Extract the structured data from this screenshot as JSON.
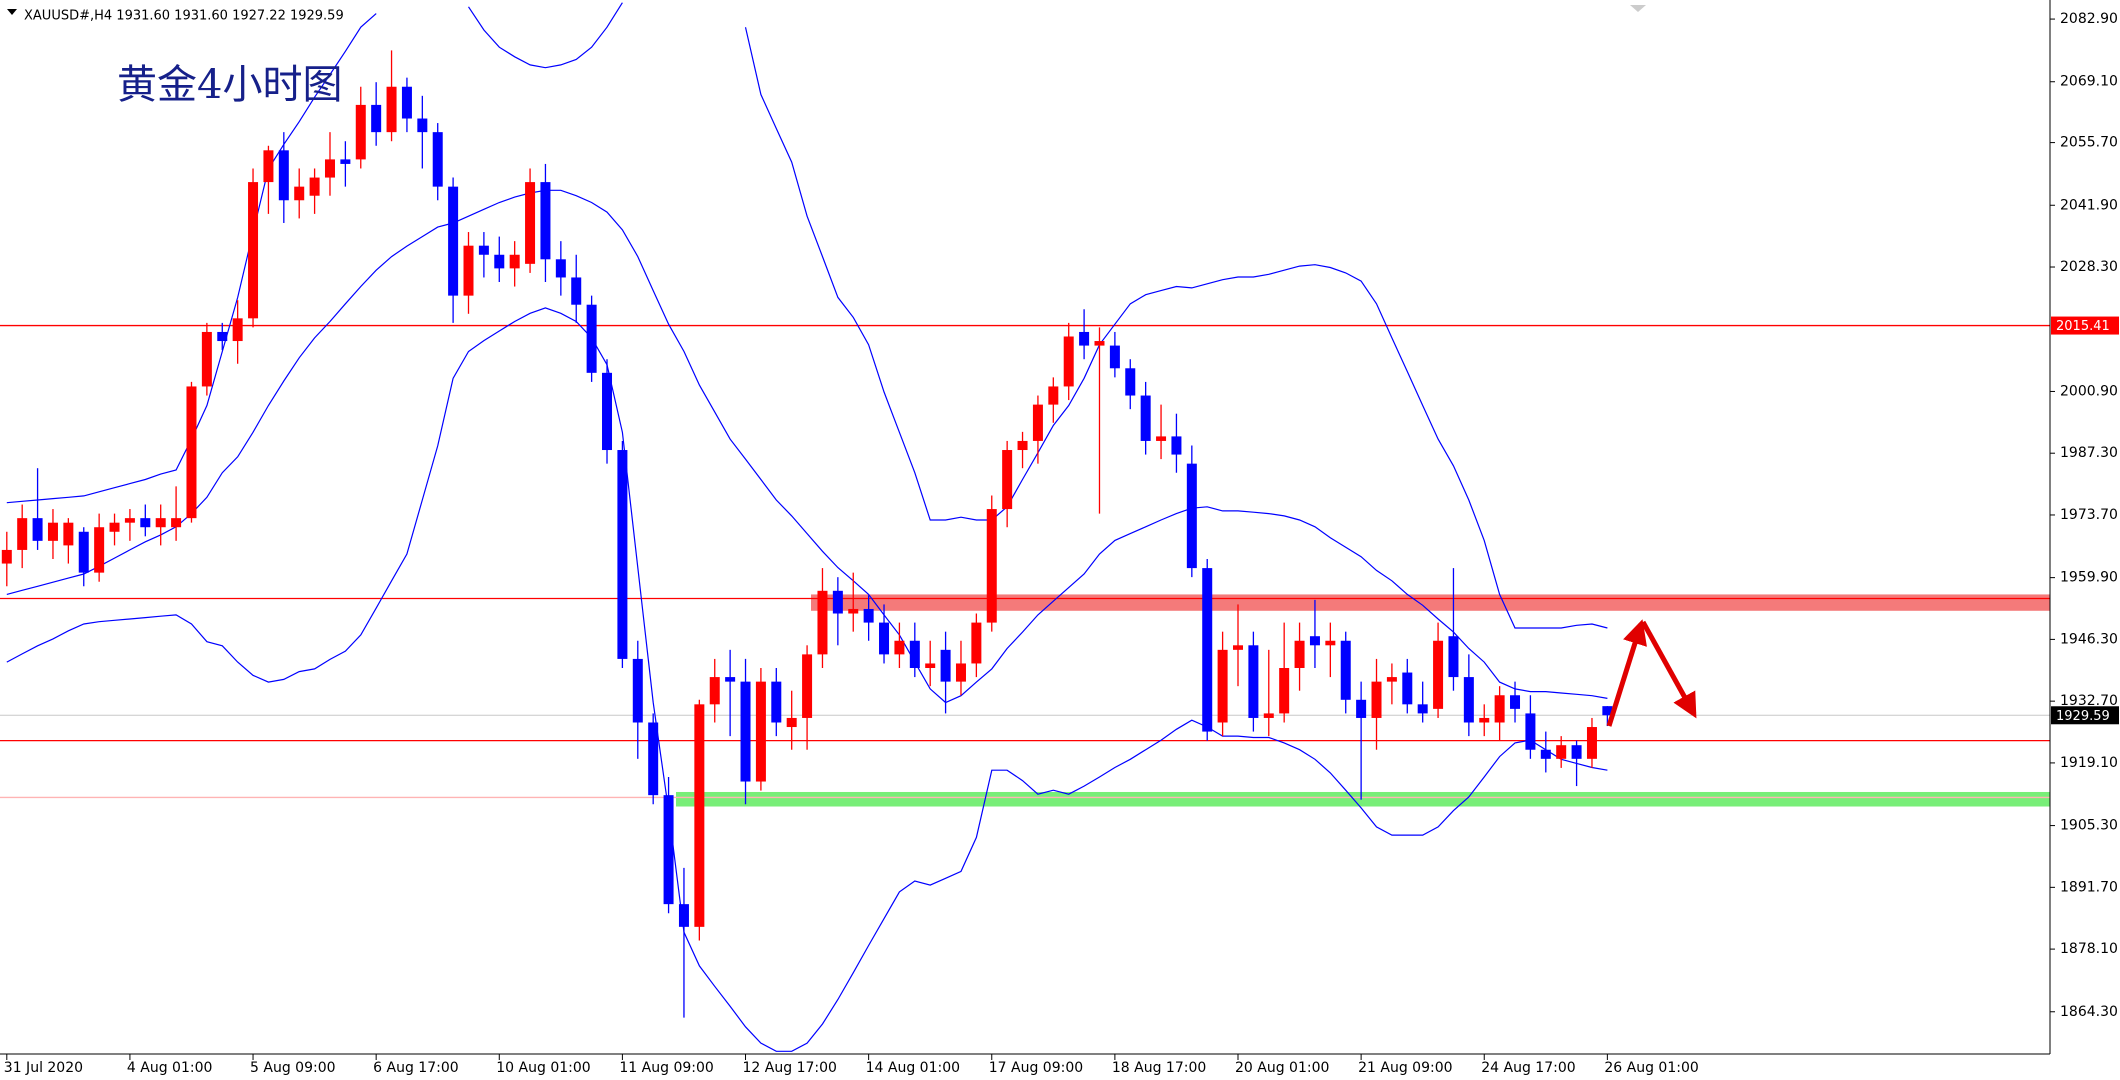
{
  "chart_data": {
    "type": "candlestick",
    "title": "XAUUSD#,H4  1931.60 1931.60 1927.22 1929.59",
    "annotation": "黄金4小时图",
    "up_color": "#ff0000",
    "down_color": "#0000ff",
    "categories": [
      "31 Jul 2020",
      null,
      null,
      null,
      null,
      null,
      null,
      null,
      "4 Aug 01:00",
      null,
      null,
      null,
      null,
      null,
      null,
      null,
      "5 Aug 09:00",
      null,
      null,
      null,
      null,
      null,
      null,
      null,
      "6 Aug 17:00",
      null,
      null,
      null,
      null,
      null,
      null,
      null,
      "10 Aug 01:00",
      null,
      null,
      null,
      null,
      null,
      null,
      null,
      "11 Aug 09:00",
      null,
      null,
      null,
      null,
      null,
      null,
      null,
      "12 Aug 17:00",
      null,
      null,
      null,
      null,
      null,
      null,
      null,
      "14 Aug 01:00",
      null,
      null,
      null,
      null,
      null,
      null,
      null,
      "17 Aug 09:00",
      null,
      null,
      null,
      null,
      null,
      null,
      null,
      "18 Aug 17:00",
      null,
      null,
      null,
      null,
      null,
      null,
      null,
      "20 Aug 01:00",
      null,
      null,
      null,
      null,
      null,
      null,
      null,
      "21 Aug 09:00",
      null,
      null,
      null,
      null,
      null,
      null,
      null,
      "24 Aug 17:00",
      null,
      null,
      null,
      null,
      null,
      null,
      null,
      "26 Aug 01:00"
    ],
    "open": [
      1963,
      1966,
      1973,
      1968,
      1967,
      1970,
      1961,
      1970,
      1972,
      1973,
      1971,
      1971,
      1973,
      2002,
      2014,
      2012,
      2017,
      2047,
      2054,
      2043,
      2044,
      2048,
      2052,
      2052,
      2064,
      2058,
      2068,
      2061,
      2058,
      2046,
      2022,
      2033,
      2031,
      2028,
      2029,
      2047,
      2030,
      2026,
      2020,
      2005,
      1988,
      1942,
      1928,
      1912,
      1888,
      1883,
      1932,
      1938,
      1937,
      1915,
      1937,
      1927,
      1929,
      1943,
      1957,
      1952,
      1953,
      1950,
      1943,
      1946,
      1940,
      1944,
      1937,
      1941,
      1950,
      1975,
      1988,
      1990,
      1998,
      2002,
      2014,
      2011,
      2011,
      2006,
      2000,
      1990,
      1991,
      1985,
      1962,
      1928,
      1944,
      1945,
      1929,
      1930,
      1940,
      1947,
      1945,
      1946,
      1933,
      1929,
      1937,
      1939,
      1932,
      1931,
      1947,
      1938,
      1928,
      1928,
      1934,
      1930,
      1922,
      1920,
      1923,
      1920,
      1931.6
    ],
    "high": [
      1970,
      1976,
      1984,
      1975,
      1973,
      1971,
      1974,
      1974,
      1975,
      1976,
      1976,
      1980,
      2003,
      2016,
      2016,
      2021,
      2050,
      2055,
      2058,
      2050,
      2050,
      2058,
      2056,
      2068,
      2069,
      2076,
      2070,
      2066,
      2060,
      2048,
      2036,
      2036,
      2035,
      2034,
      2050,
      2051,
      2034,
      2031,
      2022,
      2008,
      1990,
      1946,
      1930,
      1916,
      1896,
      1933,
      1942,
      1944,
      1942,
      1940,
      1940,
      1935,
      1945,
      1962,
      1960,
      1961,
      1956,
      1954,
      1950,
      1950,
      1946,
      1948,
      1946,
      1952,
      1978,
      1990,
      1992,
      2000,
      2004,
      2016,
      2019,
      2015,
      2014,
      2008,
      2003,
      1998,
      1996,
      1989,
      1964,
      1948,
      1954,
      1948,
      1944,
      1950,
      1950,
      1955,
      1950,
      1948,
      1937,
      1942,
      1941,
      1942,
      1937,
      1950,
      1962,
      1943,
      1932,
      1936,
      1937,
      1934,
      1926,
      1925,
      1924,
      1929,
      1931.6
    ],
    "low": [
      1958,
      1962,
      1966,
      1964,
      1963,
      1958,
      1959,
      1967,
      1968,
      1969,
      1967,
      1968,
      1972,
      2000,
      2010,
      2007,
      2015,
      2040,
      2038,
      2039,
      2040,
      2044,
      2046,
      2050,
      2055,
      2056,
      2058,
      2050,
      2043,
      2016,
      2018,
      2026,
      2025,
      2024,
      2027,
      2025,
      2022,
      2016,
      2003,
      1985,
      1940,
      1920,
      1910,
      1886,
      1863,
      1880,
      1928,
      1925,
      1910,
      1913,
      1925,
      1922,
      1922,
      1940,
      1945,
      1948,
      1946,
      1941,
      1940,
      1938,
      1936,
      1930,
      1934,
      1938,
      1948,
      1971,
      1984,
      1985,
      1994,
      1999,
      2008,
      1974,
      2004,
      1997,
      1987,
      1986,
      1983,
      1960,
      1924,
      1925,
      1936,
      1926,
      1925,
      1928,
      1935,
      1940,
      1938,
      1930,
      1911,
      1922,
      1932,
      1930,
      1928,
      1929,
      1935,
      1925,
      1925,
      1924,
      1928,
      1920,
      1917,
      1918,
      1914,
      1918,
      1927.22
    ],
    "close": [
      1966,
      1973,
      1968,
      1972,
      1972,
      1961,
      1971,
      1972,
      1973,
      1971,
      1973,
      1973,
      2002,
      2014,
      2012,
      2017,
      2047,
      2054,
      2043,
      2046,
      2048,
      2052,
      2051,
      2064,
      2058,
      2068,
      2061,
      2058,
      2046,
      2022,
      2033,
      2031,
      2028,
      2031,
      2047,
      2030,
      2026,
      2020,
      2005,
      1988,
      1942,
      1928,
      1912,
      1888,
      1883,
      1932,
      1938,
      1937,
      1915,
      1937,
      1928,
      1929,
      1943,
      1957,
      1952,
      1953,
      1950,
      1943,
      1946,
      1940,
      1941,
      1937,
      1941,
      1950,
      1975,
      1988,
      1990,
      1998,
      2002,
      2013,
      2011,
      2012,
      2006,
      2000,
      1990,
      1991,
      1987,
      1962,
      1926,
      1944,
      1945,
      1929,
      1930,
      1940,
      1946,
      1945,
      1946,
      1933,
      1929,
      1937,
      1938,
      1932,
      1930,
      1946,
      1938,
      1928,
      1929,
      1934,
      1931,
      1922,
      1920,
      1923,
      1920,
      1927,
      1929.59
    ],
    "overlays": [
      {
        "color": "#0000ff",
        "values": [
          1976.4,
          1976.7,
          1977.0,
          1977.3,
          1977.6,
          1977.9,
          1978.8,
          1979.7,
          1980.6,
          1981.5,
          1982.7,
          1983.6,
          1990.4,
          1997.8,
          2009.7,
          2021.6,
          2035.9,
          2049.9,
          2055.3,
          2060.3,
          2065.7,
          2070.7,
          2075.8,
          2081.1,
          2084.1,
          null,
          null,
          null,
          null,
          null,
          2085.6,
          2080.5,
          2076.7,
          2074.6,
          2072.8,
          2072.2,
          2072.8,
          2074.0,
          2076.7,
          2081.1,
          2086.5,
          null,
          null,
          null,
          null,
          null,
          null,
          null,
          2081.1,
          2066.3,
          2058.8,
          2051.4,
          2039.5,
          2030.6,
          2021.6,
          2017.2,
          2011.2,
          2000.8,
          1991.9,
          1983.0,
          1972.6,
          1972.6,
          1973.2,
          1972.6,
          1972.6,
          1975.5,
          1981.5,
          1987.4,
          1993.4,
          1997.8,
          2003.8,
          2011.2,
          2015.7,
          2020.2,
          2022.2,
          2023.1,
          2024.0,
          2023.7,
          2024.6,
          2025.5,
          2026.1,
          2026.1,
          2026.7,
          2027.6,
          2028.5,
          2028.8,
          2028.2,
          2027.0,
          2025.2,
          2020.2,
          2012.7,
          2005.3,
          1997.8,
          1990.4,
          1984.5,
          1977.0,
          1968.1,
          1956.2,
          1948.8,
          1948.8,
          1948.8,
          1948.8,
          1949.4,
          1949.7,
          1948.8
        ]
      },
      {
        "color": "#0000ff",
        "values": [
          1956.2,
          1957.1,
          1958.0,
          1958.9,
          1959.8,
          1960.7,
          1962.4,
          1964.2,
          1966.0,
          1967.8,
          1969.3,
          1971.1,
          1974.0,
          1977.6,
          1983.0,
          1986.5,
          1991.9,
          1997.8,
          2003.2,
          2008.3,
          2012.7,
          2016.3,
          2020.2,
          2024.0,
          2027.6,
          2030.6,
          2032.9,
          2035.0,
          2037.1,
          2038.0,
          2039.5,
          2041.0,
          2042.5,
          2043.7,
          2044.6,
          2045.2,
          2045.2,
          2044.0,
          2042.5,
          2040.4,
          2036.5,
          2030.6,
          2023.1,
          2015.7,
          2009.7,
          2002.3,
          1996.4,
          1990.4,
          1986.0,
          1981.5,
          1977.0,
          1973.5,
          1969.6,
          1965.7,
          1962.1,
          1959.2,
          1956.2,
          1951.7,
          1947.3,
          1941.3,
          1935.4,
          1932.4,
          1933.9,
          1936.9,
          1939.8,
          1944.3,
          1947.9,
          1951.7,
          1954.7,
          1957.7,
          1960.7,
          1965.1,
          1968.1,
          1969.6,
          1971.1,
          1972.6,
          1974.0,
          1975.2,
          1975.5,
          1974.6,
          1974.6,
          1974.3,
          1974.0,
          1973.5,
          1972.6,
          1971.1,
          1968.7,
          1966.6,
          1964.5,
          1961.5,
          1959.2,
          1956.2,
          1953.8,
          1950.8,
          1947.9,
          1944.3,
          1941.3,
          1936.9,
          1935.4,
          1934.8,
          1934.8,
          1934.5,
          1934.2,
          1933.9,
          1933.3
        ]
      },
      {
        "color": "#0000ff",
        "values": [
          1941.3,
          1943.1,
          1944.9,
          1946.4,
          1948.2,
          1949.7,
          1950.2,
          1950.5,
          1950.8,
          1951.1,
          1951.4,
          1951.7,
          1949.7,
          1945.8,
          1944.9,
          1941.3,
          1938.4,
          1936.9,
          1937.5,
          1939.2,
          1939.8,
          1941.9,
          1943.7,
          1947.3,
          1953.2,
          1959.2,
          1965.1,
          1977.0,
          1988.9,
          2003.8,
          2009.7,
          2012.1,
          2014.2,
          2016.3,
          2018.1,
          2019.3,
          2018.1,
          2016.3,
          2012.7,
          2006.8,
          1991.9,
          1962.1,
          1932.4,
          1908.6,
          1881.8,
          1874.4,
          1869.9,
          1865.5,
          1861.0,
          1857.4,
          1855.6,
          1855.6,
          1857.4,
          1861.6,
          1867.0,
          1872.9,
          1878.9,
          1884.8,
          1890.7,
          1893.1,
          1892.2,
          1893.7,
          1895.2,
          1902.7,
          1917.5,
          1917.5,
          1915.2,
          1912.2,
          1913.1,
          1912.2,
          1914.0,
          1916.0,
          1918.1,
          1919.9,
          1922.0,
          1924.1,
          1926.5,
          1928.5,
          1927.0,
          1925.0,
          1925.0,
          1924.7,
          1924.7,
          1923.5,
          1922.0,
          1919.9,
          1916.9,
          1913.1,
          1909.2,
          1905.0,
          1903.2,
          1903.2,
          1903.2,
          1905.0,
          1908.6,
          1911.6,
          1916.0,
          1920.5,
          1923.5,
          1924.1,
          1922.0,
          1919.9,
          1919.0,
          1918.1,
          1917.5
        ]
      }
    ],
    "alert_level": 2015.41,
    "alert_color": "#ff0000",
    "last_price_color": "#c8c8c8",
    "levels": [
      {
        "value": 1955.3,
        "color": "#ff0000"
      },
      {
        "value": 1924.0,
        "color": "#ff0000"
      },
      {
        "value": 1911.5,
        "color": "#ffb4b4"
      }
    ],
    "zones": [
      {
        "range": [
          1952.6,
          1956.2
        ],
        "color": "#f47a7a"
      },
      {
        "range": [
          1909.5,
          1912.7
        ],
        "color": "#78ee78"
      }
    ],
    "ylim": [
      1855.0,
      2087.1
    ],
    "yticks": [
      {
        "value": 2082.9,
        "label": "2082.90"
      },
      {
        "value": 2069.1,
        "label": "2069.10"
      },
      {
        "value": 2055.7,
        "label": "2055.70"
      },
      {
        "value": 2041.9,
        "label": "2041.90"
      },
      {
        "value": 2028.3,
        "label": "2028.30"
      },
      {
        "value": 2000.9,
        "label": "2000.90"
      },
      {
        "value": 1987.3,
        "label": "1987.30"
      },
      {
        "value": 1973.7,
        "label": "1973.70"
      },
      {
        "value": 1959.9,
        "label": "1959.90"
      },
      {
        "value": 1946.3,
        "label": "1946.30"
      },
      {
        "value": 1932.7,
        "label": "1932.70"
      },
      {
        "value": 1919.1,
        "label": "1919.10"
      },
      {
        "value": 1905.3,
        "label": "1905.30"
      },
      {
        "value": 1891.7,
        "label": "1891.70"
      },
      {
        "value": 1878.1,
        "label": "1878.10"
      },
      {
        "value": 1864.3,
        "label": "1864.30"
      }
    ]
  }
}
